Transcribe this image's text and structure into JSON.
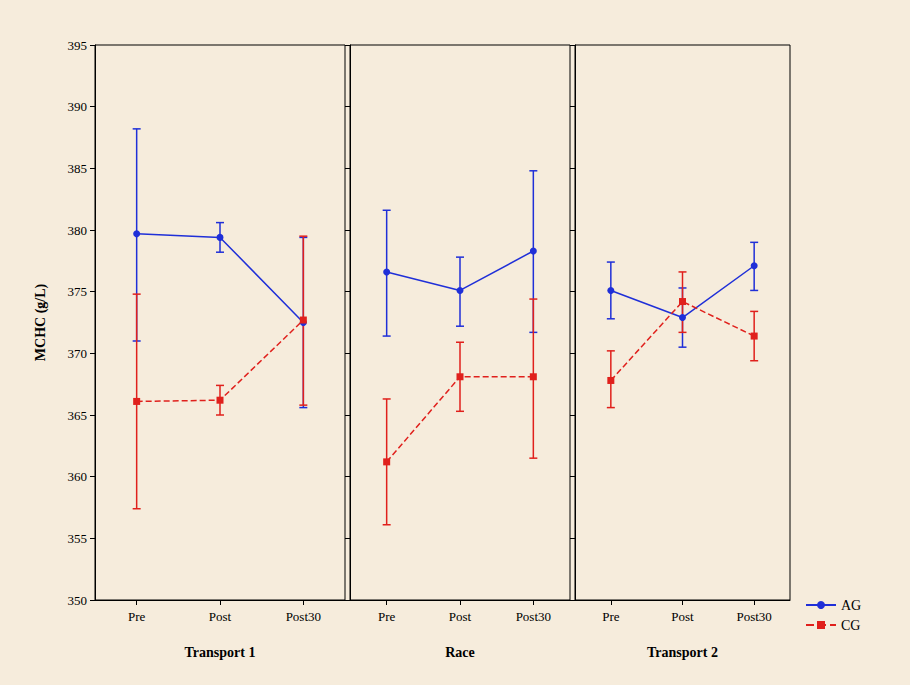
{
  "chart_data": [
    {
      "type": "line",
      "title": "Transport 1",
      "y_label": "MCHC (g/L)",
      "categories": [
        "Pre",
        "Post",
        "Post30"
      ],
      "ylim": [
        350,
        395
      ],
      "yticks": [
        350,
        355,
        360,
        365,
        370,
        375,
        380,
        385,
        390,
        395
      ],
      "series": [
        {
          "name": "AG",
          "color": "#1f2fd8",
          "marker": "circle",
          "line_style": "solid",
          "values": [
            379.7,
            379.4,
            372.5
          ],
          "lower": [
            371.0,
            378.2,
            365.6
          ],
          "upper": [
            388.2,
            380.6,
            379.4
          ]
        },
        {
          "name": "CG",
          "color": "#e0201c",
          "marker": "square",
          "line_style": "dashed",
          "values": [
            366.1,
            366.2,
            372.7
          ],
          "lower": [
            357.4,
            365.0,
            365.8
          ],
          "upper": [
            374.8,
            367.4,
            379.5
          ]
        }
      ]
    },
    {
      "type": "line",
      "title": "Race",
      "tick_labels": "x",
      "categories": [
        "Pre",
        "Post",
        "Post30"
      ],
      "ylim": [
        350,
        395
      ],
      "yticks": [
        350,
        355,
        360,
        365,
        370,
        375,
        380,
        385,
        390,
        395
      ],
      "series": [
        {
          "name": "AG",
          "color": "#1f2fd8",
          "marker": "circle",
          "line_style": "solid",
          "values": [
            376.6,
            375.1,
            378.3
          ],
          "lower": [
            371.4,
            372.2,
            371.7
          ],
          "upper": [
            381.6,
            377.8,
            384.8
          ]
        },
        {
          "name": "CG",
          "color": "#e0201c",
          "marker": "square",
          "line_style": "dashed",
          "values": [
            361.2,
            368.1,
            368.1
          ],
          "lower": [
            356.1,
            365.3,
            361.5
          ],
          "upper": [
            366.3,
            370.9,
            374.4
          ]
        }
      ]
    },
    {
      "type": "line",
      "title": "Transport 2",
      "tick_labels": "x",
      "legend": "lower right",
      "categories": [
        "Pre",
        "Post",
        "Post30"
      ],
      "ylim": [
        350,
        395
      ],
      "yticks": [
        350,
        355,
        360,
        365,
        370,
        375,
        380,
        385,
        390,
        395
      ],
      "series": [
        {
          "name": "AG",
          "color": "#1f2fd8",
          "marker": "circle",
          "line_style": "solid",
          "values": [
            375.1,
            372.9,
            377.1
          ],
          "lower": [
            372.8,
            370.5,
            375.1
          ],
          "upper": [
            377.4,
            375.3,
            379.0
          ]
        },
        {
          "name": "CG",
          "color": "#e0201c",
          "marker": "square",
          "line_style": "dashed",
          "values": [
            367.8,
            374.2,
            371.4
          ],
          "lower": [
            365.6,
            371.7,
            369.4
          ],
          "upper": [
            370.2,
            376.6,
            373.4
          ]
        }
      ]
    }
  ]
}
